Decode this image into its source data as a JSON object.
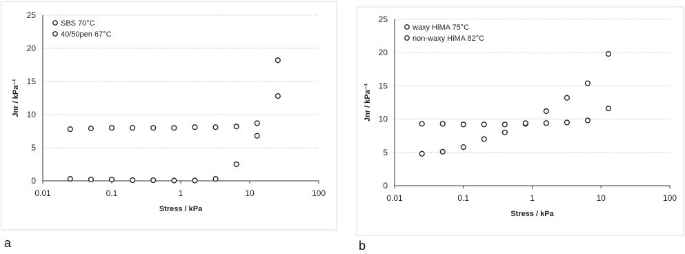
{
  "panels": {
    "a": {
      "letter": "a",
      "chart_data": {
        "type": "scatter",
        "xscale": "log",
        "xlim": [
          0.01,
          100
        ],
        "ylim": [
          0,
          25
        ],
        "xticks": [
          "0.01",
          "0.1",
          "1",
          "10",
          "100"
        ],
        "yticks": [
          "0",
          "5",
          "10",
          "15",
          "20",
          "25"
        ],
        "xlabel": "Stress / kPa",
        "ylabel": "Jnr / kPa⁻¹",
        "grid": true,
        "legend_position": "top-left",
        "series": [
          {
            "name": "SBS 70°C",
            "x": [
              0.025,
              0.05,
              0.1,
              0.2,
              0.4,
              0.8,
              1.6,
              3.2,
              6.4,
              12.8
            ],
            "y": [
              0.3,
              0.2,
              0.2,
              0.1,
              0.1,
              0.05,
              0.05,
              0.3,
              2.5,
              6.8
            ]
          },
          {
            "name": "40/50pen 67°C",
            "x": [
              0.025,
              0.05,
              0.1,
              0.2,
              0.4,
              0.8,
              1.6,
              3.2,
              6.4,
              12.8,
              25.6,
              25.6
            ],
            "y": [
              7.8,
              7.9,
              8.0,
              8.0,
              8.0,
              8.0,
              8.1,
              8.1,
              8.2,
              8.7,
              18.2,
              12.8
            ]
          }
        ]
      }
    },
    "b": {
      "letter": "b",
      "chart_data": {
        "type": "scatter",
        "xscale": "log",
        "xlim": [
          0.01,
          100
        ],
        "ylim": [
          0,
          25
        ],
        "xticks": [
          "0.01",
          "0.1",
          "1",
          "10",
          "100"
        ],
        "yticks": [
          "0",
          "5",
          "10",
          "15",
          "20",
          "25"
        ],
        "xlabel": "Stress / kPa",
        "ylabel": "Jnr / kPa⁻¹",
        "grid": true,
        "legend_position": "top-left",
        "series": [
          {
            "name": "waxy HiMA 75°C",
            "x": [
              0.025,
              0.05,
              0.1,
              0.2,
              0.4,
              0.8,
              1.6,
              3.2,
              6.4,
              12.8
            ],
            "y": [
              4.8,
              5.1,
              5.8,
              7.0,
              8.0,
              9.3,
              11.2,
              13.2,
              15.4,
              19.8
            ]
          },
          {
            "name": "non-waxy HiMA 82°C",
            "x": [
              0.025,
              0.05,
              0.1,
              0.2,
              0.4,
              0.8,
              1.6,
              3.2,
              6.4,
              12.8
            ],
            "y": [
              9.3,
              9.3,
              9.2,
              9.2,
              9.2,
              9.4,
              9.4,
              9.5,
              9.8,
              11.6
            ]
          }
        ]
      }
    }
  }
}
